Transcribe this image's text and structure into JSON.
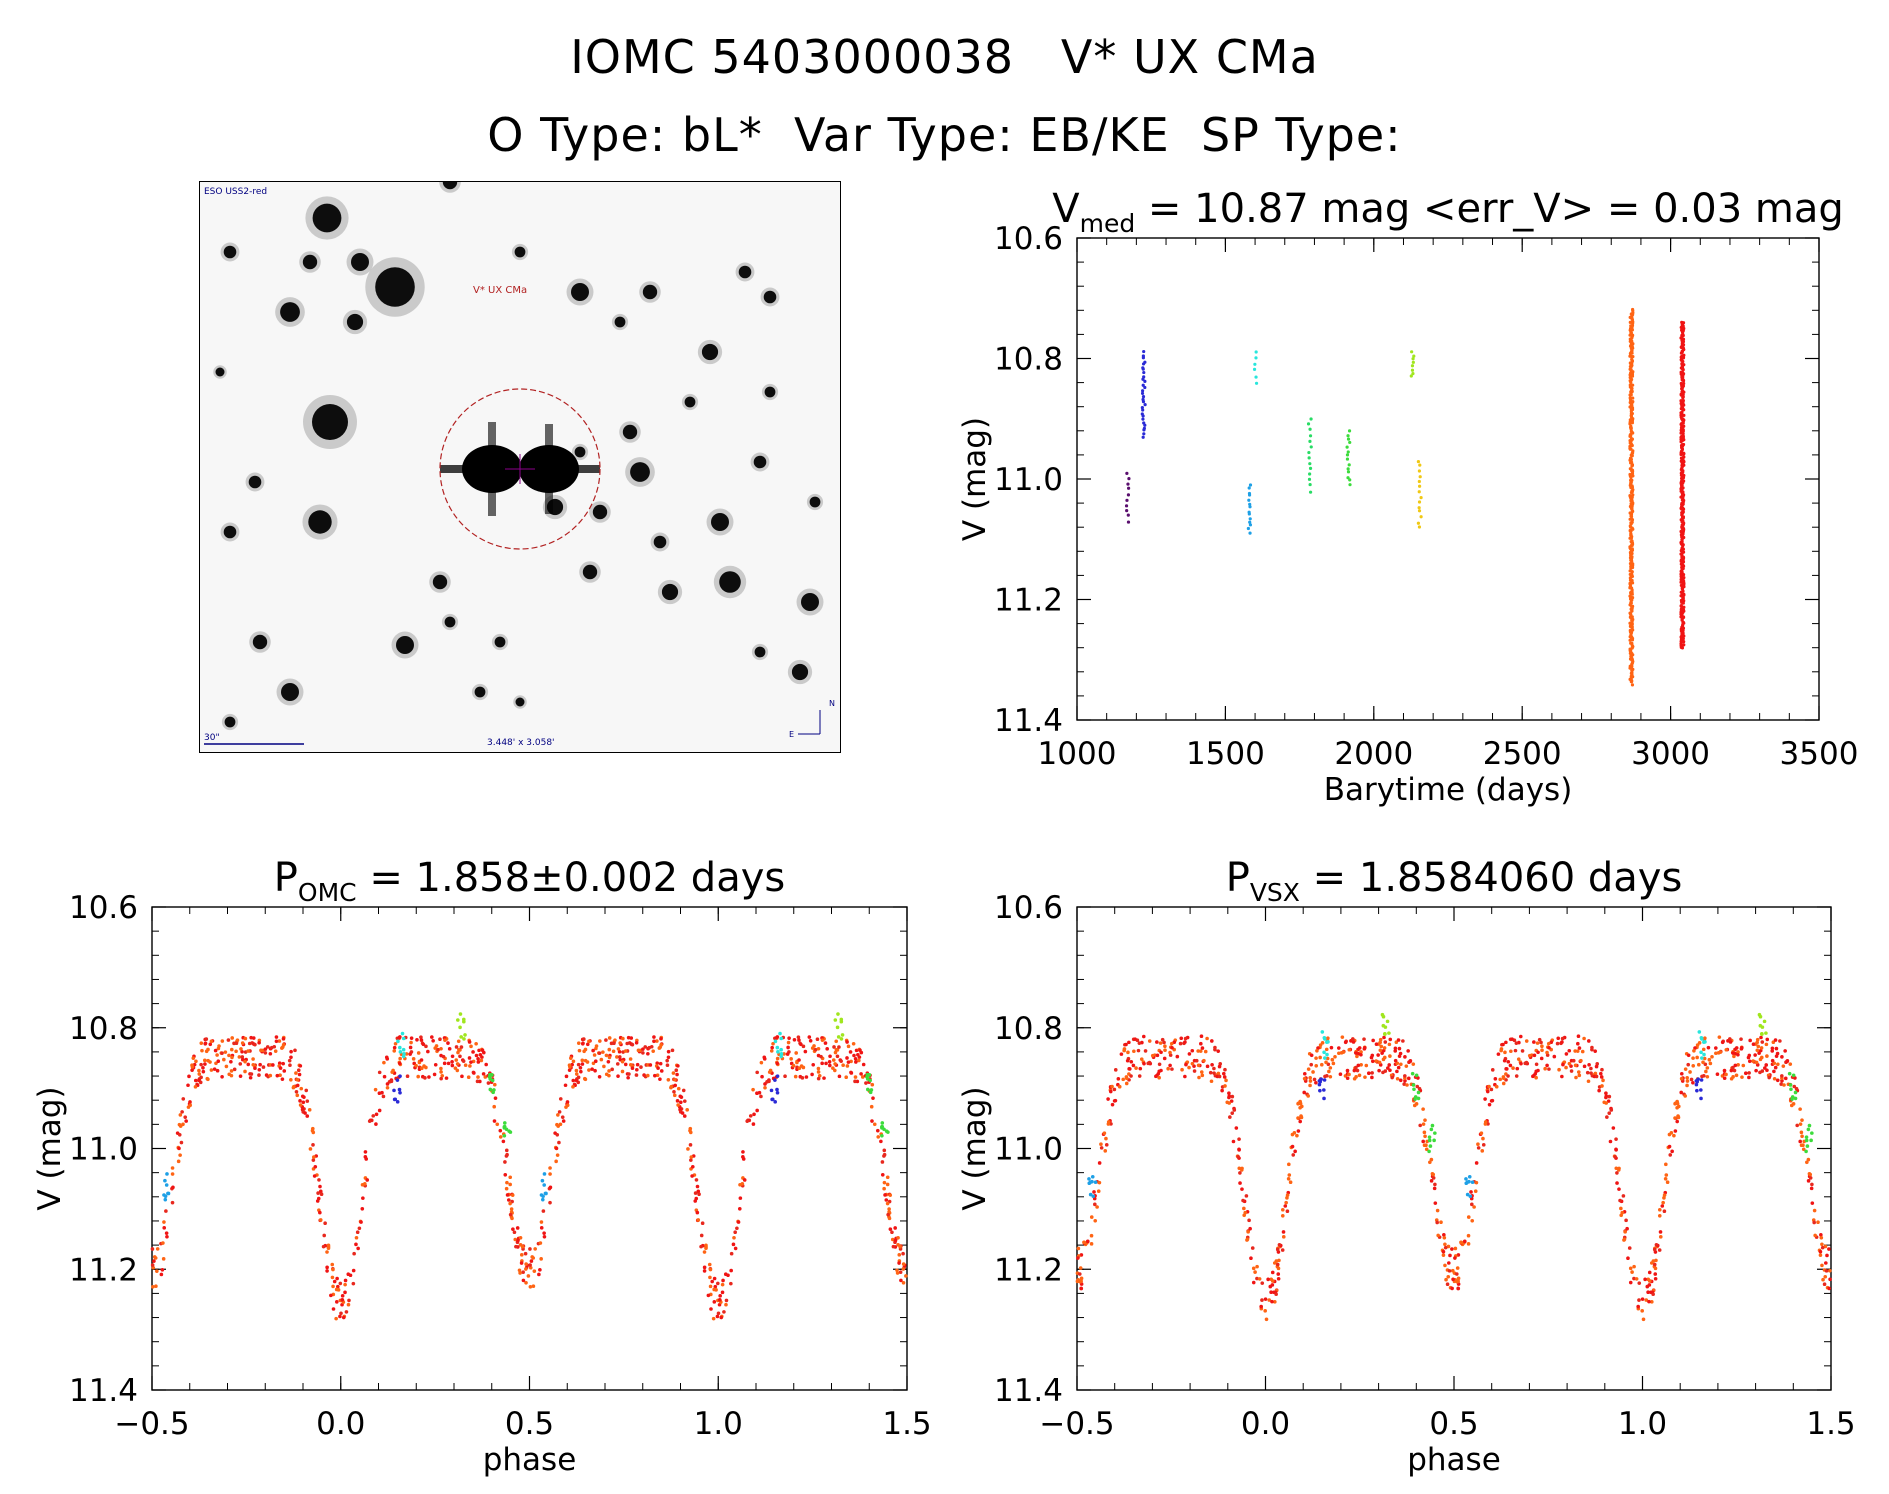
{
  "header": {
    "line1": "IOMC 5403000038   V* UX CMa",
    "line2": "O Type: bL*  Var Type: EB/KE  SP Type:"
  },
  "finder": {
    "survey_label": "ESO USS2-red",
    "target_label": "V* UX CMa",
    "scale_label": "30\"",
    "fov_label": "3.448' x 3.058'",
    "north_label": "N",
    "east_label": "E"
  },
  "colors": {
    "axis": "#000000",
    "circle": "#b22222",
    "finder_label": "#000080"
  },
  "chart_data": [
    {
      "type": "scatter",
      "name": "light-curve",
      "title_main": "V",
      "title_sub": "med",
      "title_rest": " = 10.87 mag <err_V> = 0.03 mag",
      "xlabel": "Barytime (days)",
      "ylabel": "V (mag)",
      "xlim": [
        1000,
        3500
      ],
      "ylim": [
        11.4,
        10.6
      ],
      "xticks": [
        "1000",
        "1500",
        "2000",
        "2500",
        "3000",
        "3500"
      ],
      "yticks": [
        "10.6",
        "10.8",
        "11.0",
        "11.2",
        "11.4"
      ],
      "series": [
        {
          "name": "g1",
          "color": "#5a0f6e",
          "x": 1170,
          "y": [
            10.99,
            11.07
          ],
          "n": 10
        },
        {
          "name": "g2",
          "color": "#2a2ad6",
          "x": 1225,
          "y": [
            10.79,
            10.93
          ],
          "n": 30
        },
        {
          "name": "g3",
          "color": "#1ea0e6",
          "x": 1580,
          "y": [
            11.01,
            11.09
          ],
          "n": 14
        },
        {
          "name": "g4",
          "color": "#28e6dc",
          "x": 1600,
          "y": [
            10.79,
            10.84
          ],
          "n": 6
        },
        {
          "name": "g5",
          "color": "#28dc64",
          "x": 1785,
          "y": [
            10.9,
            11.02
          ],
          "n": 14
        },
        {
          "name": "g6",
          "color": "#3cdc3c",
          "x": 1915,
          "y": [
            10.92,
            11.01
          ],
          "n": 14
        },
        {
          "name": "g7",
          "color": "#a0e61e",
          "x": 2130,
          "y": [
            10.79,
            10.83
          ],
          "n": 8
        },
        {
          "name": "g8",
          "color": "#f0c814",
          "x": 2155,
          "y": [
            10.97,
            11.08
          ],
          "n": 14
        },
        {
          "name": "g9",
          "color": "#ff6414",
          "x": 2868,
          "y": [
            10.72,
            11.34
          ],
          "n": 380
        },
        {
          "name": "g10",
          "color": "#f01414",
          "x": 3040,
          "y": [
            10.74,
            11.28
          ],
          "n": 380
        }
      ]
    },
    {
      "type": "scatter",
      "name": "phase-omc",
      "title_main": "P",
      "title_sub": "OMC",
      "title_rest": " = 1.858±0.002 days",
      "xlabel": "phase",
      "ylabel": "V (mag)",
      "xlim": [
        -0.5,
        1.5
      ],
      "ylim": [
        11.4,
        10.6
      ],
      "xticks": [
        "−0.5",
        "0.0",
        "0.5",
        "1.0",
        "1.5"
      ],
      "yticks": [
        "10.6",
        "10.8",
        "11.0",
        "11.2",
        "11.4"
      ],
      "period_days": 1.858
    },
    {
      "type": "scatter",
      "name": "phase-vsx",
      "title_main": "P",
      "title_sub": "VSX",
      "title_rest": " = 1.8584060 days",
      "xlabel": "phase",
      "ylabel": "V (mag)",
      "xlim": [
        -0.5,
        1.5
      ],
      "ylim": [
        11.4,
        10.6
      ],
      "xticks": [
        "−0.5",
        "0.0",
        "0.5",
        "1.0",
        "1.5"
      ],
      "yticks": [
        "10.6",
        "10.8",
        "11.0",
        "11.2",
        "11.4"
      ],
      "period_days": 1.858406
    }
  ]
}
